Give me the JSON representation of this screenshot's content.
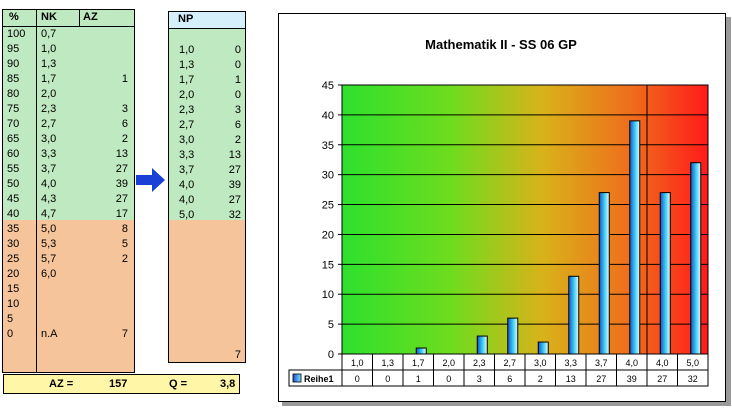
{
  "grade_table": {
    "headers": {
      "pct": "%",
      "nk": "NK",
      "az": "AZ"
    },
    "rows": [
      {
        "pct": "100",
        "nk": "0,7",
        "az": ""
      },
      {
        "pct": "95",
        "nk": "1,0",
        "az": ""
      },
      {
        "pct": "90",
        "nk": "1,3",
        "az": ""
      },
      {
        "pct": "85",
        "nk": "1,7",
        "az": "1"
      },
      {
        "pct": "80",
        "nk": "2,0",
        "az": ""
      },
      {
        "pct": "75",
        "nk": "2,3",
        "az": "3"
      },
      {
        "pct": "70",
        "nk": "2,7",
        "az": "6"
      },
      {
        "pct": "65",
        "nk": "3,0",
        "az": "2"
      },
      {
        "pct": "60",
        "nk": "3,3",
        "az": "13"
      },
      {
        "pct": "55",
        "nk": "3,7",
        "az": "27"
      },
      {
        "pct": "50",
        "nk": "4,0",
        "az": "39"
      },
      {
        "pct": "45",
        "nk": "4,3",
        "az": "27"
      },
      {
        "pct": "40",
        "nk": "4,7",
        "az": "17"
      },
      {
        "pct": "35",
        "nk": "5,0",
        "az": "8"
      },
      {
        "pct": "30",
        "nk": "5,3",
        "az": "5"
      },
      {
        "pct": "25",
        "nk": "5,7",
        "az": "2"
      },
      {
        "pct": "20",
        "nk": "6,0",
        "az": ""
      },
      {
        "pct": "15",
        "nk": "",
        "az": ""
      },
      {
        "pct": "10",
        "nk": "",
        "az": ""
      },
      {
        "pct": "5",
        "nk": "",
        "az": ""
      },
      {
        "pct": "0",
        "nk": "n.A",
        "az": "7"
      }
    ]
  },
  "np_table": {
    "header": "NP",
    "rows": [
      {
        "np": "1,0",
        "az": "0"
      },
      {
        "np": "1,3",
        "az": "0"
      },
      {
        "np": "1,7",
        "az": "1"
      },
      {
        "np": "2,0",
        "az": "0"
      },
      {
        "np": "2,3",
        "az": "3"
      },
      {
        "np": "2,7",
        "az": "6"
      },
      {
        "np": "3,0",
        "az": "2"
      },
      {
        "np": "3,3",
        "az": "13"
      },
      {
        "np": "3,7",
        "az": "27"
      },
      {
        "np": "4,0",
        "az": "39"
      },
      {
        "np": "4,0",
        "az": "27"
      },
      {
        "np": "5,0",
        "az": "32"
      }
    ],
    "footer_az": "7"
  },
  "summary": {
    "az_label": "AZ =",
    "az_value": "157",
    "q_label": "Q =",
    "q_value": "3,8"
  },
  "colors": {
    "green": "#bfe9c0",
    "peach": "#f5c49b",
    "yellow": "#fff6a8",
    "arrow": "#1a3fd6",
    "np_header": "#d6f0fb"
  },
  "icons": {
    "arrow": "right-arrow-icon"
  },
  "chart_data": {
    "type": "bar",
    "title": "Mathematik II - SS 06 GP",
    "categories": [
      "1,0",
      "1,3",
      "1,7",
      "2,0",
      "2,3",
      "2,7",
      "3,0",
      "3,3",
      "3,7",
      "4,0",
      "4,0",
      "5,0"
    ],
    "series": [
      {
        "name": "Reihe1",
        "values": [
          0,
          0,
          1,
          0,
          3,
          6,
          2,
          13,
          27,
          39,
          27,
          32
        ]
      }
    ],
    "ylim": [
      0,
      45
    ],
    "yticks": [
      0,
      5,
      10,
      15,
      20,
      25,
      30,
      35,
      40,
      45
    ],
    "grid": true,
    "background": "green-to-red gradient",
    "table_values": [
      "0",
      "0",
      "1",
      "0",
      "3",
      "6",
      "2",
      "13",
      "27",
      "39",
      "27",
      "32"
    ]
  }
}
